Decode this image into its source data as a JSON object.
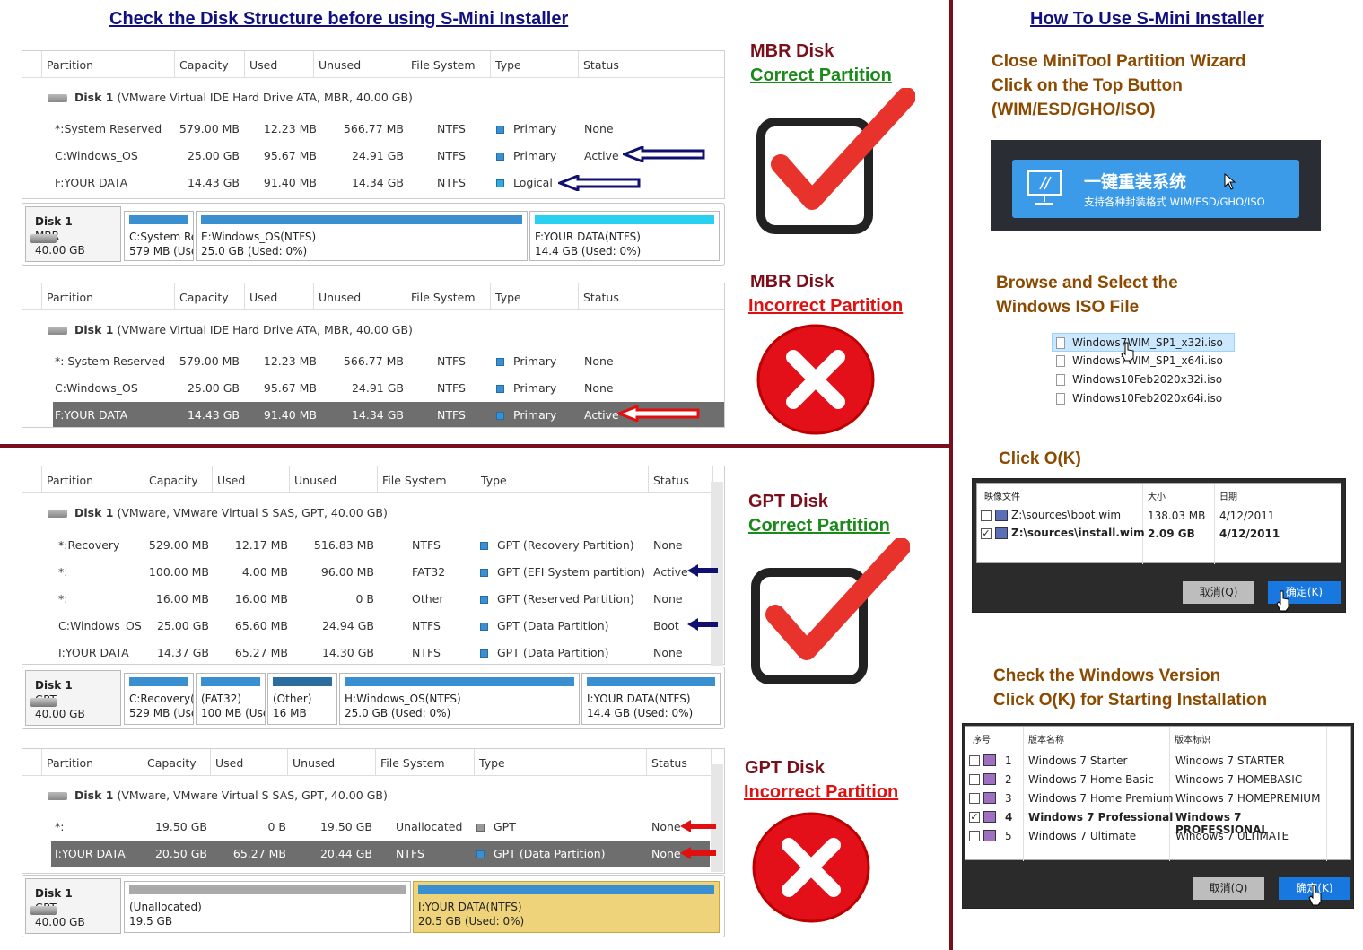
{
  "titles": {
    "left": "Check the Disk Structure before using S-Mini Installer",
    "right": "How To Use S-Mini Installer"
  },
  "columns": [
    "Partition",
    "Capacity",
    "Used",
    "Unused",
    "File System",
    "Type",
    "Status"
  ],
  "mbr": {
    "disk_line": "Disk 1",
    "disk_desc": "(VMware Virtual IDE Hard Drive ATA, MBR, 40.00 GB)",
    "correct_rows": [
      [
        "*:System Reserved",
        "579.00 MB",
        "12.23 MB",
        "566.77 MB",
        "NTFS",
        "Primary",
        "None"
      ],
      [
        "C:Windows_OS",
        "25.00 GB",
        "95.67 MB",
        "24.91 GB",
        "NTFS",
        "Primary",
        "Active"
      ],
      [
        "F:YOUR DATA",
        "14.43 GB",
        "91.40 MB",
        "14.34 GB",
        "NTFS",
        "Logical",
        ""
      ]
    ],
    "incorrect_rows": [
      [
        "*: System Reserved",
        "579.00 MB",
        "12.23 MB",
        "566.77 MB",
        "NTFS",
        "Primary",
        "None"
      ],
      [
        "C:Windows_OS",
        "25.00 GB",
        "95.67 MB",
        "24.91 GB",
        "NTFS",
        "Primary",
        "None"
      ],
      [
        "F:YOUR DATA",
        "14.43 GB",
        "91.40 MB",
        "14.34 GB",
        "NTFS",
        "Primary",
        "Active"
      ]
    ],
    "map": {
      "disk": "Disk 1",
      "style": "MBR",
      "size": "40.00 GB",
      "segments": [
        [
          "C:System Re",
          "579 MB (Use"
        ],
        [
          "E:Windows_OS(NTFS)",
          "25.0 GB (Used: 0%)"
        ],
        [
          "F:YOUR DATA(NTFS)",
          "14.4 GB (Used: 0%)"
        ]
      ]
    }
  },
  "gpt": {
    "disk_line": "Disk 1",
    "disk_desc": "(VMware, VMware Virtual S SAS, GPT, 40.00 GB)",
    "correct_rows": [
      [
        "*:Recovery",
        "529.00 MB",
        "12.17 MB",
        "516.83 MB",
        "NTFS",
        "GPT (Recovery Partition)",
        "None"
      ],
      [
        "*:",
        "100.00 MB",
        "4.00 MB",
        "96.00 MB",
        "FAT32",
        "GPT (EFI System partition)",
        "Active"
      ],
      [
        "*:",
        "16.00 MB",
        "16.00 MB",
        "0 B",
        "Other",
        "GPT (Reserved Partition)",
        "None"
      ],
      [
        "C:Windows_OS",
        "25.00 GB",
        "65.60 MB",
        "24.94 GB",
        "NTFS",
        "GPT (Data Partition)",
        "Boot"
      ],
      [
        "I:YOUR DATA",
        "14.37 GB",
        "65.27 MB",
        "14.30 GB",
        "NTFS",
        "GPT (Data Partition)",
        "None"
      ]
    ],
    "map": {
      "disk": "Disk 1",
      "style": "GPT",
      "size": "40.00 GB",
      "segments": [
        [
          "C:Recovery(",
          "529 MB (Use"
        ],
        [
          "(FAT32)",
          "100 MB (Use"
        ],
        [
          "(Other)",
          "16 MB"
        ],
        [
          "H:Windows_OS(NTFS)",
          "25.0 GB (Used: 0%)"
        ],
        [
          "I:YOUR DATA(NTFS)",
          "14.4 GB (Used: 0%)"
        ]
      ]
    },
    "incorrect_rows": [
      [
        "*:",
        "19.50 GB",
        "0 B",
        "19.50 GB",
        "Unallocated",
        "GPT",
        "None"
      ],
      [
        "I:YOUR DATA",
        "20.50 GB",
        "65.27 MB",
        "20.44 GB",
        "NTFS",
        "GPT (Data Partition)",
        "None"
      ]
    ],
    "map2": {
      "disk": "Disk 1",
      "style": "GPT",
      "size": "40.00 GB",
      "segments": [
        [
          "(Unallocated)",
          "19.5 GB"
        ],
        [
          "I:YOUR DATA(NTFS)",
          "20.5 GB (Used: 0%)"
        ]
      ]
    }
  },
  "labels": {
    "mbr": "MBR Disk",
    "gpt": "GPT Disk",
    "correct": "Correct Partition",
    "incorrect": "Incorrect Partition"
  },
  "steps": {
    "s1": [
      "Close MiniTool Partition Wizard",
      "Click on the Top Button",
      "(WIM/ESD/GHO/ISO)"
    ],
    "button_main": "一键重装系统",
    "button_sub": "支持各种封装格式 WIM/ESD/GHO/ISO",
    "s2": [
      "Browse and Select the",
      "Windows ISO File"
    ],
    "files": [
      "Windows7WIM_SP1_x32i.iso",
      "Windows7WIM_SP1_x64i.iso",
      "Windows10Feb2020x32i.iso",
      "Windows10Feb2020x64i.iso"
    ],
    "s3": "Click O(K)",
    "wim_headers": [
      "映像文件",
      "大小",
      "日期"
    ],
    "wim_rows": [
      [
        "Z:\\sources\\boot.wim",
        "138.03 MB",
        "4/12/2011"
      ],
      [
        "Z:\\sources\\install.wim",
        "2.09 GB",
        "4/12/2011"
      ]
    ],
    "s4": [
      "Check the Windows Version",
      "Click O(K) for Starting Installation"
    ],
    "ver_headers": [
      "序号",
      "版本名称",
      "版本标识"
    ],
    "ver_rows": [
      [
        "1",
        "Windows 7 Starter",
        "Windows 7 STARTER"
      ],
      [
        "2",
        "Windows 7 Home Basic",
        "Windows 7 HOMEBASIC"
      ],
      [
        "3",
        "Windows 7 Home Premium",
        "Windows 7 HOMEPREMIUM"
      ],
      [
        "4",
        "Windows 7 Professional",
        "Windows 7 PROFESSIONAL"
      ],
      [
        "5",
        "Windows 7 Ultimate",
        "Windows 7 ULTIMATE"
      ]
    ],
    "btn_cancel": "取消(Q)",
    "btn_ok": "确定(K)"
  },
  "colors": {
    "divider": "#7a0e1a",
    "title": "#101080",
    "green": "#1a8a1a",
    "red": "#e01010",
    "brown": "#8b4a00",
    "accent_blue": "#3a8fd0"
  }
}
